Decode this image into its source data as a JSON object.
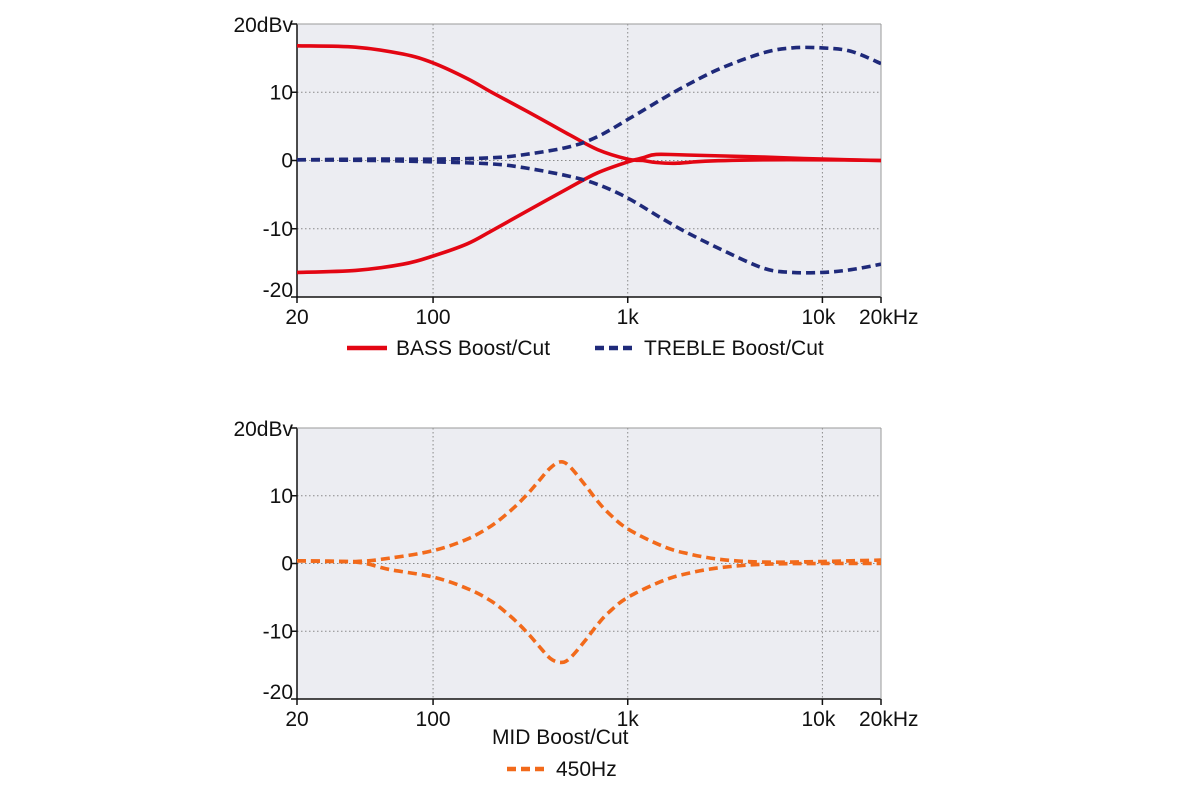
{
  "colors": {
    "plot_bg": "#ecedf2",
    "grid": "#8a8a8a",
    "axis": "#111111",
    "bass": "#e30613",
    "treble": "#1f2a7a",
    "mid": "#f26a1b"
  },
  "chart_data": [
    {
      "type": "line",
      "x_scale": "log",
      "xlim": [
        20,
        20000
      ],
      "ylim": [
        -20,
        20
      ],
      "grid": true,
      "legend_position": "bottom",
      "x_tick_labels": [
        "20",
        "100",
        "1k",
        "10k",
        "20kHz"
      ],
      "y_tick_labels": [
        "20dBv",
        "10",
        "0",
        "-10",
        "-20"
      ],
      "series": [
        {
          "name": "BASS Boost/Cut",
          "color": "bass",
          "dash": false,
          "curves": [
            {
              "x": [
                20,
                40,
                70,
                100,
                150,
                200,
                300,
                500,
                700,
                1000,
                1200,
                1400,
                1800,
                2500,
                5000,
                10000,
                20000
              ],
              "y": [
                16.8,
                16.6,
                15.6,
                14.3,
                12.0,
                10.0,
                7.3,
                3.8,
                1.6,
                0.2,
                0.0,
                -0.3,
                -0.4,
                -0.1,
                0.1,
                0.1,
                0.0
              ]
            },
            {
              "x": [
                20,
                40,
                70,
                100,
                150,
                200,
                300,
                500,
                700,
                1000,
                1200,
                1400,
                2000,
                5000,
                10000,
                20000
              ],
              "y": [
                -16.4,
                -16.1,
                -15.2,
                -14.0,
                -12.2,
                -10.3,
                -7.5,
                -4.0,
                -1.8,
                -0.2,
                0.4,
                0.9,
                0.8,
                0.5,
                0.2,
                0.0
              ]
            }
          ]
        },
        {
          "name": "TREBLE Boost/Cut",
          "color": "treble",
          "dash": true,
          "curves": [
            {
              "x": [
                20,
                50,
                100,
                200,
                300,
                500,
                700,
                1000,
                1500,
                2000,
                3000,
                5000,
                7000,
                10000,
                14000,
                20000
              ],
              "y": [
                0.1,
                0.2,
                0.2,
                0.4,
                0.9,
                2.0,
                3.5,
                6.0,
                9.0,
                11.0,
                13.5,
                15.8,
                16.5,
                16.5,
                16.0,
                14.2
              ]
            },
            {
              "x": [
                20,
                50,
                100,
                200,
                300,
                500,
                700,
                1000,
                1500,
                2000,
                3000,
                5000,
                7000,
                10000,
                14000,
                20000
              ],
              "y": [
                0.1,
                0.0,
                -0.2,
                -0.5,
                -1.1,
                -2.3,
                -3.5,
                -5.5,
                -8.5,
                -10.5,
                -13.0,
                -15.8,
                -16.4,
                -16.4,
                -16.0,
                -15.2
              ]
            }
          ]
        }
      ]
    },
    {
      "type": "line",
      "x_scale": "log",
      "xlim": [
        20,
        20000
      ],
      "ylim": [
        -20,
        20
      ],
      "grid": true,
      "legend_position": "bottom",
      "x_tick_labels": [
        "20",
        "100",
        "1k",
        "10k",
        "20kHz"
      ],
      "y_tick_labels": [
        "20dBv",
        "10",
        "0",
        "-10",
        "-20"
      ],
      "xlabel": "MID Boost/Cut",
      "series": [
        {
          "name": "450Hz",
          "color": "mid",
          "dash": true,
          "curves": [
            {
              "x": [
                20,
                40,
                60,
                100,
                150,
                200,
                250,
                300,
                350,
                400,
                450,
                500,
                600,
                700,
                800,
                1000,
                1500,
                2000,
                3000,
                5000,
                10000,
                20000
              ],
              "y": [
                0.4,
                0.3,
                0.8,
                1.9,
                3.6,
                5.6,
                7.8,
                10.0,
                12.2,
                14.1,
                15.0,
                14.4,
                11.7,
                9.2,
                7.4,
                5.1,
                2.6,
                1.5,
                0.6,
                0.2,
                0.3,
                0.5
              ]
            },
            {
              "x": [
                20,
                40,
                60,
                100,
                150,
                200,
                250,
                300,
                350,
                400,
                450,
                500,
                600,
                700,
                800,
                1000,
                1500,
                2000,
                3000,
                5000,
                10000,
                20000
              ],
              "y": [
                0.4,
                0.2,
                -0.9,
                -2.0,
                -3.7,
                -5.6,
                -7.8,
                -10.0,
                -12.2,
                -14.0,
                -14.6,
                -14.1,
                -11.5,
                -9.0,
                -7.2,
                -5.0,
                -2.6,
                -1.5,
                -0.6,
                -0.1,
                0.0,
                0.0
              ]
            }
          ]
        }
      ]
    }
  ]
}
